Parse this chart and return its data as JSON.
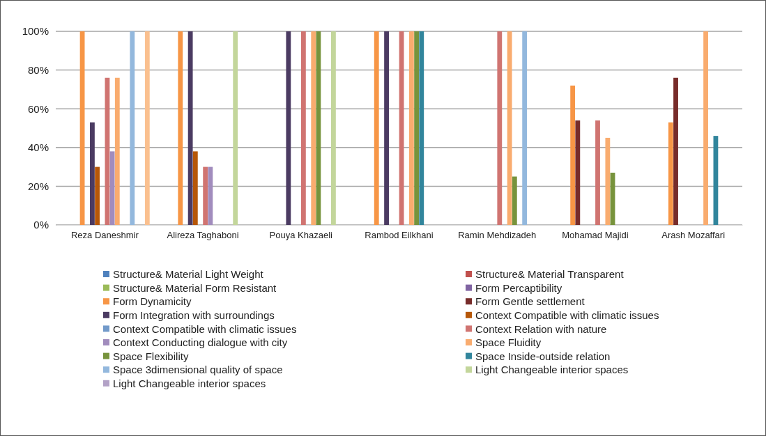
{
  "chart_data": {
    "type": "bar",
    "categories": [
      "Reza Daneshmir",
      "Alireza Taghaboni",
      "Pouya Khazaeli",
      "Rambod Eilkhani",
      "Ramin Mehdizadeh",
      "Mohamad Majidi",
      "Arash Mozaffari"
    ],
    "ylim": [
      0,
      100
    ],
    "yticks": [
      {
        "value": 0,
        "label": "0%"
      },
      {
        "value": 20,
        "label": "20%"
      },
      {
        "value": 40,
        "label": "40%"
      },
      {
        "value": 60,
        "label": "60%"
      },
      {
        "value": 80,
        "label": "80%"
      },
      {
        "value": 100,
        "label": "100%"
      }
    ],
    "grid": "y",
    "legend": "bottom",
    "series": [
      {
        "name": "Structure& Material Light Weight",
        "color": "#4f81bd",
        "values": [
          null,
          null,
          null,
          null,
          null,
          null,
          null
        ]
      },
      {
        "name": "Structure& Material Transparent",
        "color": "#c0504d",
        "values": [
          null,
          null,
          null,
          null,
          null,
          null,
          null
        ]
      },
      {
        "name": "Structure& Material Form Resistant",
        "color": "#9bbb59",
        "values": [
          null,
          null,
          null,
          null,
          null,
          null,
          null
        ]
      },
      {
        "name": "Form  Percaptibility",
        "color": "#8064a2",
        "values": [
          null,
          null,
          null,
          null,
          null,
          null,
          null
        ]
      },
      {
        "name": "Form  Dynamicity",
        "color": "#f79646",
        "values": [
          100,
          100,
          null,
          100,
          null,
          72,
          53
        ]
      },
      {
        "name": "Form  Gentle settlement",
        "color": "#772c2a",
        "values": [
          null,
          null,
          null,
          null,
          null,
          54,
          76
        ]
      },
      {
        "name": "Form  Integration with surroundings",
        "color": "#4b3b62",
        "values": [
          53,
          100,
          100,
          100,
          null,
          null,
          null
        ]
      },
      {
        "name": "Context Compatible with climatic issues",
        "color": "#b65708",
        "values": [
          30,
          38,
          null,
          null,
          null,
          null,
          null
        ]
      },
      {
        "name": "Context Compatible with climatic issues",
        "color": "#729aca",
        "values": [
          null,
          null,
          null,
          null,
          null,
          null,
          null
        ]
      },
      {
        "name": "Context Relation with nature",
        "color": "#d07471",
        "values": [
          76,
          30,
          100,
          100,
          100,
          54,
          null
        ]
      },
      {
        "name": "Context Conducting dialogue with city",
        "color": "#a18cbd",
        "values": [
          38,
          30,
          null,
          null,
          null,
          null,
          null
        ]
      },
      {
        "name": "Space Fluidity",
        "color": "#f9ac6f",
        "values": [
          76,
          null,
          100,
          100,
          100,
          45,
          100
        ]
      },
      {
        "name": "Space Flexibility",
        "color": "#77933c",
        "values": [
          null,
          null,
          100,
          100,
          25,
          27,
          null
        ]
      },
      {
        "name": "Space Inside-outside relation",
        "color": "#31859c",
        "values": [
          null,
          null,
          null,
          100,
          null,
          null,
          46
        ]
      },
      {
        "name": "Space 3dimensional quality of space",
        "color": "#93b8dd",
        "values": [
          100,
          null,
          null,
          null,
          100,
          null,
          null
        ]
      },
      {
        "name": "Light Changeable interior spaces",
        "color": "#c3d69b",
        "values": [
          null,
          100,
          100,
          null,
          null,
          null,
          null
        ]
      },
      {
        "name": "Light Changeable interior spaces",
        "color": "#b3a2c7",
        "values": [
          null,
          null,
          null,
          null,
          null,
          null,
          null
        ]
      },
      {
        "color": "#fac08f",
        "values": [
          100,
          null,
          null,
          null,
          null,
          null,
          null
        ]
      }
    ]
  }
}
